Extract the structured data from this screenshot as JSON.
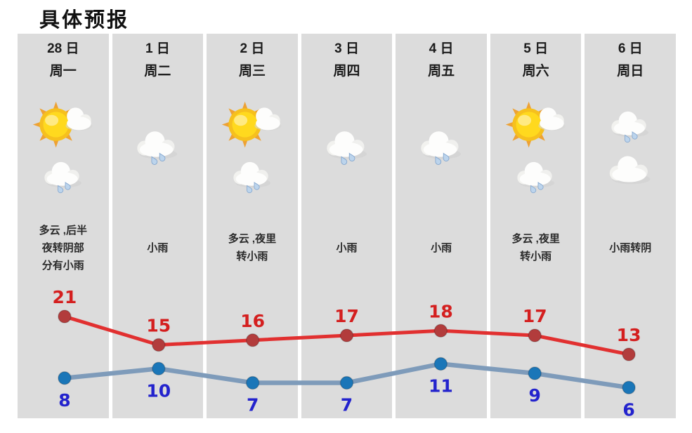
{
  "page_title": "具体预报",
  "columns": [
    {
      "date": "28 日",
      "weekday": "周一",
      "icons": [
        "sun-cloud-icon",
        "rain-cloud-icon"
      ],
      "desc": "多云 ,后半\n夜转阴部\n分有小雨"
    },
    {
      "date": "1 日",
      "weekday": "周二",
      "icons": [
        "rain-cloud-icon"
      ],
      "desc": "小雨"
    },
    {
      "date": "2 日",
      "weekday": "周三",
      "icons": [
        "sun-cloud-icon",
        "rain-cloud-icon"
      ],
      "desc": "多云 ,夜里\n转小雨"
    },
    {
      "date": "3 日",
      "weekday": "周四",
      "icons": [
        "rain-cloud-icon"
      ],
      "desc": "小雨"
    },
    {
      "date": "4 日",
      "weekday": "周五",
      "icons": [
        "rain-cloud-icon"
      ],
      "desc": "小雨"
    },
    {
      "date": "5 日",
      "weekday": "周六",
      "icons": [
        "sun-cloud-icon",
        "rain-cloud-icon"
      ],
      "desc": "多云 ,夜里\n转小雨"
    },
    {
      "date": "6 日",
      "weekday": "周日",
      "icons": [
        "rain-cloud-icon",
        "cloud-icon"
      ],
      "desc": "小雨转阴"
    }
  ],
  "chart_data": {
    "type": "line",
    "categories": [
      "28日 周一",
      "1日 周二",
      "2日 周三",
      "3日 周四",
      "4日 周五",
      "5日 周六",
      "6日 周日"
    ],
    "series": [
      {
        "name": "high_temp",
        "values": [
          21,
          15,
          16,
          17,
          18,
          17,
          13
        ],
        "line_color": "#e13030",
        "dot_color": "#b23c3c",
        "label_color": "#d41f1f"
      },
      {
        "name": "low_temp",
        "values": [
          8,
          10,
          7,
          7,
          11,
          9,
          6
        ],
        "line_color": "#7e9bba",
        "dot_color": "#1a76b8",
        "label_color": "#2323cd"
      }
    ],
    "value_labels": true,
    "legend": "none",
    "grid": false,
    "xlabel": "",
    "ylabel": ""
  },
  "colors": {
    "page_bg": "#ffffff",
    "column_bg": "#dcdcdc",
    "title_text": "#111111",
    "day_text": "#1b1b1b",
    "desc_text": "#2a2a2a",
    "sun_core": "#ffd91e",
    "sun_ring": "#f6c01e",
    "sun_rays": "#eda235",
    "cloud_fill": "#fdfdfc",
    "raindrop_fill": "#bcd4ec",
    "raindrop_edge": "#7fa3cd"
  }
}
